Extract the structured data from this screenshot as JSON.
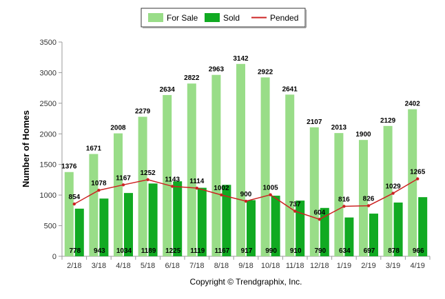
{
  "chart_data": {
    "type": "bar",
    "ylabel": "Number of Homes",
    "xlabel": "",
    "ylim": [
      0,
      3500
    ],
    "yticks": [
      0,
      500,
      1000,
      1500,
      2000,
      2500,
      3000,
      3500
    ],
    "grid": false,
    "legend_position": "top-center",
    "categories": [
      "2/18",
      "3/18",
      "4/18",
      "5/18",
      "6/18",
      "7/18",
      "8/18",
      "9/18",
      "10/18",
      "11/18",
      "12/18",
      "1/19",
      "2/19",
      "3/19",
      "4/19"
    ],
    "series": [
      {
        "name": "For Sale",
        "type": "bar",
        "color": "#99dd88",
        "values": [
          1376,
          1671,
          2008,
          2279,
          2634,
          2822,
          2963,
          3142,
          2922,
          2641,
          2107,
          2013,
          1900,
          2129,
          2402
        ]
      },
      {
        "name": "Sold",
        "type": "bar",
        "color": "#11aa22",
        "values": [
          778,
          943,
          1034,
          1189,
          1225,
          1119,
          1167,
          917,
          990,
          910,
          790,
          634,
          697,
          878,
          966
        ]
      },
      {
        "name": "Pended",
        "type": "line",
        "color": "#cc2222",
        "values": [
          854,
          1078,
          1167,
          1252,
          1143,
          1114,
          1002,
          900,
          1005,
          737,
          604,
          816,
          826,
          1029,
          1265
        ]
      }
    ]
  },
  "credit": "Copyright © Trendgraphix, Inc."
}
